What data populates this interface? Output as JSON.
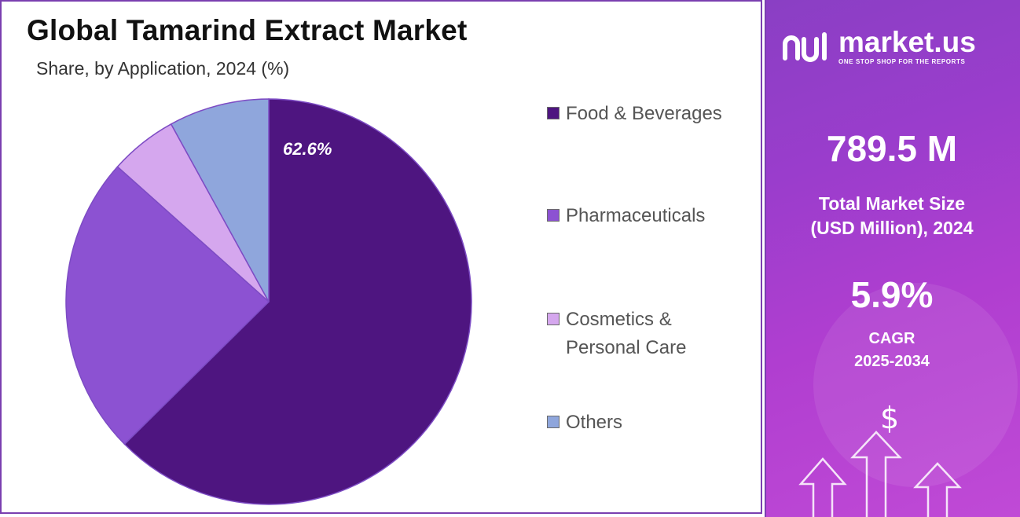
{
  "title": "Global Tamarind Extract Market",
  "subtitle": "Share, by Application, 2024 (%)",
  "chart_data": {
    "type": "pie",
    "title": "Global Tamarind Extract Market",
    "subtitle": "Share, by Application, 2024 (%)",
    "categories": [
      "Food & Beverages",
      "Pharmaceuticals",
      "Cosmetics & Personal Care",
      "Others"
    ],
    "values": [
      62.6,
      24.0,
      5.4,
      8.0
    ],
    "data_labels": [
      "62.6%",
      "",
      "",
      ""
    ],
    "colors": [
      "#4e1580",
      "#8c52d2",
      "#d5a7ee",
      "#8fa6dc"
    ],
    "legend_position": "right",
    "start_angle_deg": 0,
    "direction": "clockwise"
  },
  "legend": {
    "items": [
      {
        "lines": [
          "Food & Beverages"
        ]
      },
      {
        "lines": [
          "Pharmaceuticals"
        ]
      },
      {
        "lines": [
          "Cosmetics &",
          "Personal Care"
        ]
      },
      {
        "lines": [
          "Others"
        ]
      }
    ]
  },
  "sidebar": {
    "brand_name": "market.us",
    "brand_tagline": "ONE STOP SHOP FOR THE REPORTS",
    "market_size_value": "789.5 M",
    "market_size_label_1": "Total Market Size",
    "market_size_label_2": "(USD Million), 2024",
    "cagr_value": "5.9%",
    "cagr_label_1": "CAGR",
    "cagr_label_2": "2025-2034",
    "dollar_symbol": "$",
    "background_gradient": [
      "#8a3fc4",
      "#c04ad6"
    ],
    "icons": [
      "market-us-logo-icon",
      "dollar-icon",
      "up-arrow-icon"
    ]
  }
}
